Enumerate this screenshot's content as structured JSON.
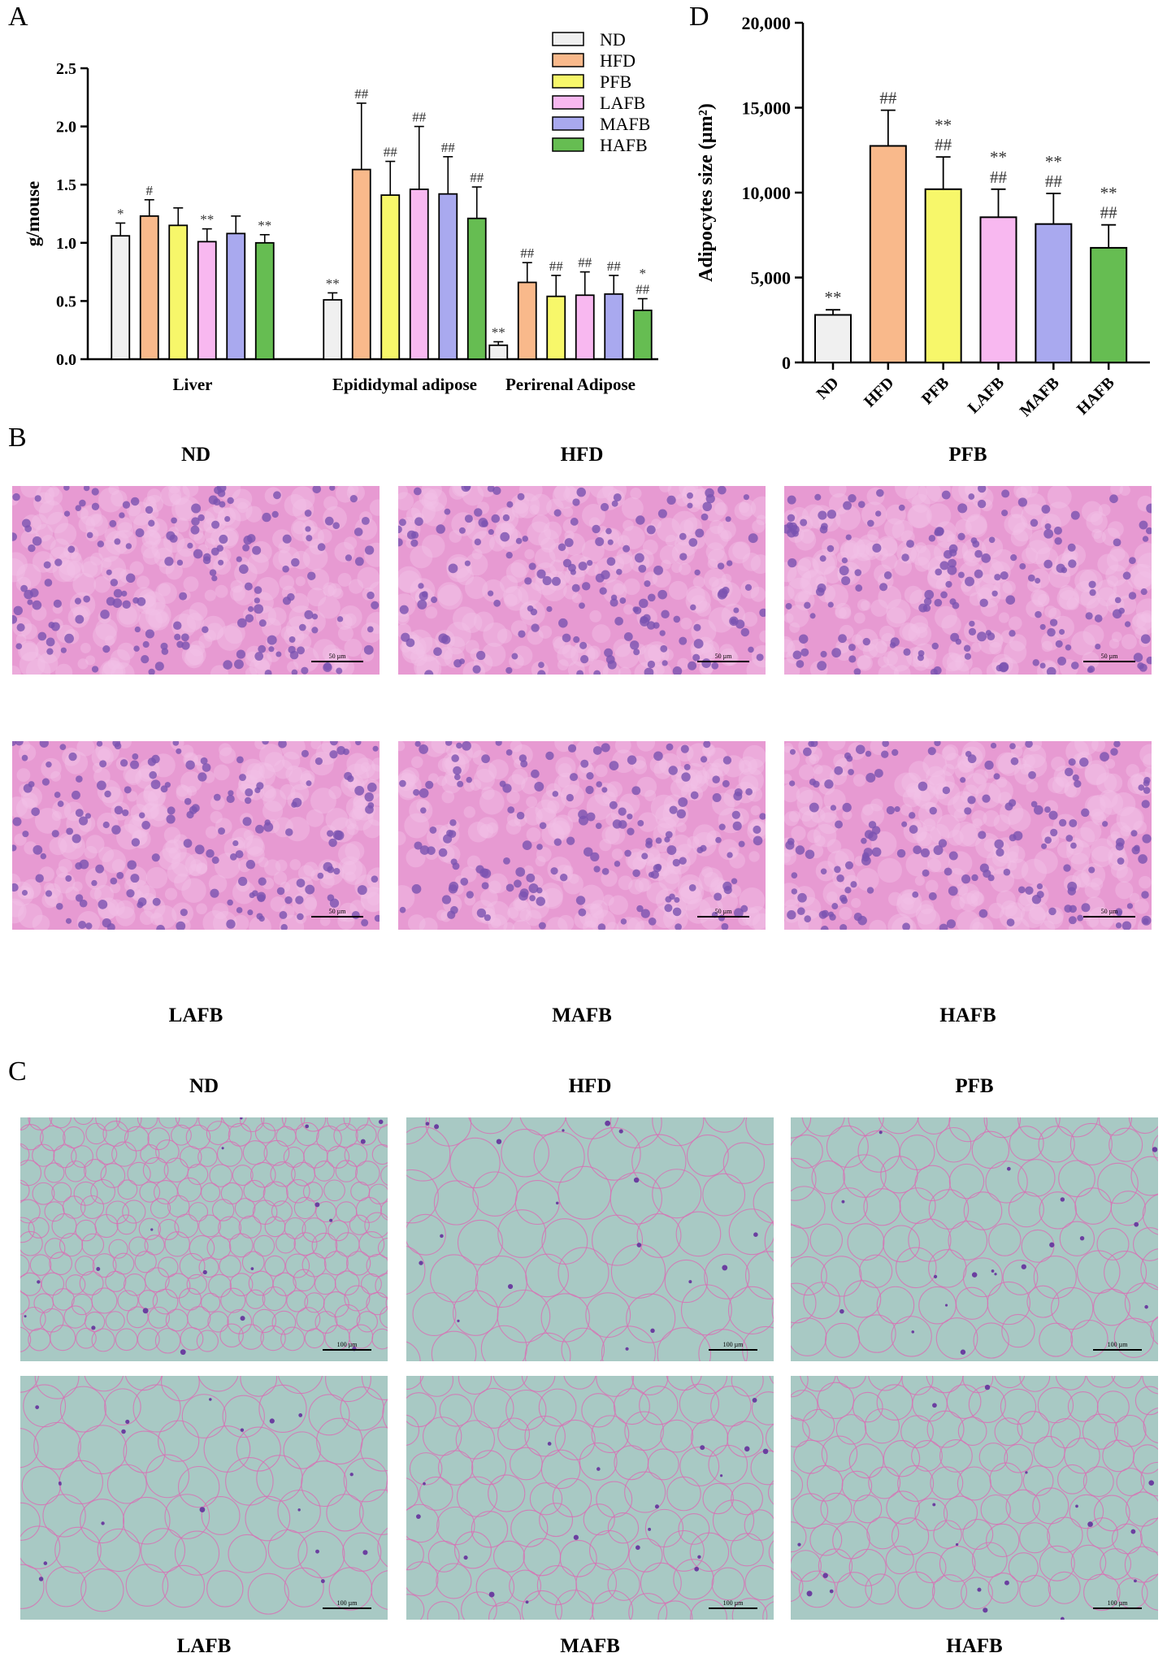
{
  "panels": {
    "a": "A",
    "b": "B",
    "c": "C",
    "d": "D"
  },
  "colors": {
    "ND": "#f0f0f0",
    "HFD": "#f9b98b",
    "PFB": "#f7f76a",
    "LAFB": "#f8b8f0",
    "MAFB": "#a9a9ef",
    "HAFB": "#66bd52"
  },
  "chart_data": [
    {
      "id": "A",
      "type": "bar",
      "ylabel": "g/mouse",
      "ylim": [
        0,
        2.5
      ],
      "yticks": [
        "0.0",
        "0.5",
        "1.0",
        "1.5",
        "2.0",
        "2.5"
      ],
      "legend_position": "top-right",
      "categories": [
        "Liver",
        "Epididymal adipose",
        "Perirenal Adipose"
      ],
      "series": [
        {
          "name": "ND",
          "values": [
            1.06,
            0.51,
            0.12
          ],
          "err": [
            0.11,
            0.06,
            0.03
          ],
          "sig": [
            "*",
            "**",
            "**"
          ]
        },
        {
          "name": "HFD",
          "values": [
            1.23,
            1.63,
            0.66
          ],
          "err": [
            0.14,
            0.57,
            0.17
          ],
          "sig": [
            "#",
            "##",
            "##"
          ]
        },
        {
          "name": "PFB",
          "values": [
            1.15,
            1.41,
            0.54
          ],
          "err": [
            0.15,
            0.29,
            0.18
          ],
          "sig": [
            "",
            "##",
            "##"
          ]
        },
        {
          "name": "LAFB",
          "values": [
            1.01,
            1.46,
            0.55
          ],
          "err": [
            0.11,
            0.54,
            0.2
          ],
          "sig": [
            "**",
            "##",
            "##"
          ]
        },
        {
          "name": "MAFB",
          "values": [
            1.08,
            1.42,
            0.56
          ],
          "err": [
            0.15,
            0.32,
            0.16
          ],
          "sig": [
            "",
            "##",
            "##"
          ]
        },
        {
          "name": "HAFB",
          "values": [
            1.0,
            1.21,
            0.42
          ],
          "err": [
            0.07,
            0.27,
            0.1
          ],
          "sig": [
            "**",
            "##",
            "*\n##"
          ]
        }
      ]
    },
    {
      "id": "D",
      "type": "bar",
      "ylabel": "Adipocytes size (µm²)",
      "ylim": [
        0,
        20000
      ],
      "yticks": [
        "0",
        "5,000",
        "10,000",
        "15,000",
        "20,000"
      ],
      "categories": [
        "ND",
        "HFD",
        "PFB",
        "LAFB",
        "MAFB",
        "HAFB"
      ],
      "values": [
        2800,
        12750,
        10200,
        8550,
        8150,
        6750
      ],
      "err": [
        300,
        2100,
        1900,
        1650,
        1800,
        1350
      ],
      "sig": [
        "**",
        "##",
        "**\n##",
        "**\n##",
        "**\n##",
        "**\n##"
      ]
    }
  ],
  "panel_b": {
    "labels": [
      "ND",
      "HFD",
      "PFB",
      "LAFB",
      "MAFB",
      "HAFB"
    ],
    "scale_bar": "50 µm"
  },
  "panel_c": {
    "labels": [
      "ND",
      "HFD",
      "PFB",
      "LAFB",
      "MAFB",
      "HAFB"
    ],
    "scale_bar": "100 µm"
  }
}
